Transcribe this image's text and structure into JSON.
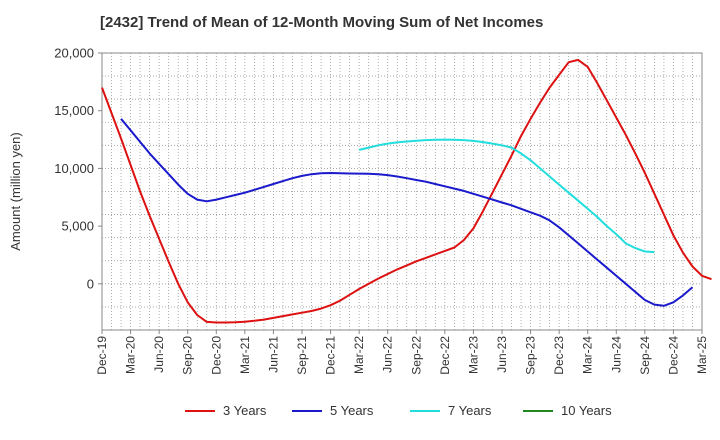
{
  "chart_data": {
    "type": "line",
    "title": "[2432]  Trend of Mean of 12-Month Moving Sum of Net Incomes",
    "ylabel": "Amount (million yen)",
    "xlabel": "",
    "ylim": [
      -4000,
      20000
    ],
    "yticks": [
      0,
      5000,
      10000,
      15000,
      20000
    ],
    "ytick_labels": [
      "0",
      "5,000",
      "10,000",
      "15,000",
      "20,000"
    ],
    "x_categories": [
      "Dec-19",
      "Mar-20",
      "Jun-20",
      "Sep-20",
      "Dec-20",
      "Mar-21",
      "Jun-21",
      "Sep-21",
      "Dec-21",
      "Mar-22",
      "Jun-22",
      "Sep-22",
      "Dec-22",
      "Mar-23",
      "Jun-23",
      "Sep-23",
      "Dec-23",
      "Mar-24",
      "Jun-24",
      "Sep-24",
      "Dec-24",
      "Mar-25"
    ],
    "x_range_months": [
      0,
      63
    ],
    "grid": true,
    "legend_position": "bottom",
    "series": [
      {
        "name": "3 Years",
        "color": "#dd1111",
        "points": [
          [
            0,
            17000
          ],
          [
            1,
            14800
          ],
          [
            2,
            12600
          ],
          [
            3,
            10300
          ],
          [
            4,
            8000
          ],
          [
            5,
            5900
          ],
          [
            6,
            3900
          ],
          [
            7,
            1900
          ],
          [
            8,
            0
          ],
          [
            9,
            -1600
          ],
          [
            10,
            -2700
          ],
          [
            11,
            -3300
          ],
          [
            12,
            -3350
          ],
          [
            13,
            -3350
          ],
          [
            14,
            -3330
          ],
          [
            15,
            -3280
          ],
          [
            16,
            -3200
          ],
          [
            17,
            -3100
          ],
          [
            18,
            -2950
          ],
          [
            19,
            -2800
          ],
          [
            20,
            -2650
          ],
          [
            21,
            -2500
          ],
          [
            22,
            -2350
          ],
          [
            23,
            -2150
          ],
          [
            24,
            -1850
          ],
          [
            25,
            -1450
          ],
          [
            26,
            -950
          ],
          [
            27,
            -450
          ],
          [
            28,
            0
          ],
          [
            29,
            450
          ],
          [
            30,
            850
          ],
          [
            31,
            1250
          ],
          [
            32,
            1600
          ],
          [
            33,
            1950
          ],
          [
            34,
            2250
          ],
          [
            35,
            2550
          ],
          [
            36,
            2850
          ],
          [
            37,
            3150
          ],
          [
            38,
            3800
          ],
          [
            39,
            4800
          ],
          [
            40,
            6300
          ],
          [
            41,
            7900
          ],
          [
            42,
            9500
          ],
          [
            43,
            11100
          ],
          [
            44,
            12800
          ],
          [
            45,
            14300
          ],
          [
            46,
            15700
          ],
          [
            47,
            17000
          ],
          [
            48,
            18100
          ],
          [
            49,
            19200
          ],
          [
            50,
            19400
          ],
          [
            51,
            18800
          ],
          [
            52,
            17400
          ],
          [
            53,
            15900
          ],
          [
            54,
            14400
          ],
          [
            55,
            12900
          ],
          [
            56,
            11300
          ],
          [
            57,
            9600
          ],
          [
            58,
            7800
          ],
          [
            59,
            6000
          ],
          [
            60,
            4200
          ],
          [
            61,
            2700
          ],
          [
            62,
            1500
          ],
          [
            63,
            700
          ],
          [
            64,
            400
          ]
        ]
      },
      {
        "name": "5 Years",
        "color": "#1a1acc",
        "points": [
          [
            2,
            14300
          ],
          [
            3,
            13300
          ],
          [
            4,
            12300
          ],
          [
            5,
            11300
          ],
          [
            6,
            10400
          ],
          [
            7,
            9500
          ],
          [
            8,
            8600
          ],
          [
            9,
            7800
          ],
          [
            10,
            7300
          ],
          [
            11,
            7150
          ],
          [
            12,
            7300
          ],
          [
            13,
            7500
          ],
          [
            14,
            7700
          ],
          [
            15,
            7900
          ],
          [
            16,
            8150
          ],
          [
            17,
            8400
          ],
          [
            18,
            8650
          ],
          [
            19,
            8900
          ],
          [
            20,
            9150
          ],
          [
            21,
            9350
          ],
          [
            22,
            9500
          ],
          [
            23,
            9580
          ],
          [
            24,
            9600
          ],
          [
            25,
            9580
          ],
          [
            26,
            9560
          ],
          [
            27,
            9550
          ],
          [
            28,
            9530
          ],
          [
            29,
            9500
          ],
          [
            30,
            9420
          ],
          [
            31,
            9300
          ],
          [
            32,
            9150
          ],
          [
            33,
            9000
          ],
          [
            34,
            8850
          ],
          [
            35,
            8650
          ],
          [
            36,
            8450
          ],
          [
            37,
            8250
          ],
          [
            38,
            8050
          ],
          [
            39,
            7800
          ],
          [
            40,
            7550
          ],
          [
            41,
            7300
          ],
          [
            42,
            7050
          ],
          [
            43,
            6800
          ],
          [
            44,
            6500
          ],
          [
            45,
            6200
          ],
          [
            46,
            5900
          ],
          [
            47,
            5500
          ],
          [
            48,
            4900
          ],
          [
            49,
            4200
          ],
          [
            50,
            3500
          ],
          [
            51,
            2800
          ],
          [
            52,
            2100
          ],
          [
            53,
            1400
          ],
          [
            54,
            700
          ],
          [
            55,
            0
          ],
          [
            56,
            -700
          ],
          [
            57,
            -1400
          ],
          [
            58,
            -1800
          ],
          [
            59,
            -1900
          ],
          [
            60,
            -1600
          ],
          [
            61,
            -1000
          ],
          [
            62,
            -300
          ]
        ]
      },
      {
        "name": "7 Years",
        "color": "#22dddd",
        "points": [
          [
            27,
            11600
          ],
          [
            28,
            11800
          ],
          [
            29,
            12000
          ],
          [
            30,
            12150
          ],
          [
            31,
            12250
          ],
          [
            32,
            12330
          ],
          [
            33,
            12400
          ],
          [
            34,
            12450
          ],
          [
            35,
            12480
          ],
          [
            36,
            12500
          ],
          [
            37,
            12480
          ],
          [
            38,
            12450
          ],
          [
            39,
            12380
          ],
          [
            40,
            12280
          ],
          [
            41,
            12150
          ],
          [
            42,
            12000
          ],
          [
            43,
            11800
          ],
          [
            44,
            11300
          ],
          [
            45,
            10700
          ],
          [
            46,
            10000
          ],
          [
            47,
            9300
          ],
          [
            48,
            8600
          ],
          [
            49,
            7900
          ],
          [
            50,
            7200
          ],
          [
            51,
            6500
          ],
          [
            52,
            5800
          ],
          [
            53,
            5000
          ],
          [
            54,
            4300
          ],
          [
            55,
            3500
          ],
          [
            56,
            3100
          ],
          [
            57,
            2800
          ],
          [
            58,
            2750
          ]
        ]
      },
      {
        "name": "10 Years",
        "color": "#228822",
        "points": []
      }
    ]
  }
}
